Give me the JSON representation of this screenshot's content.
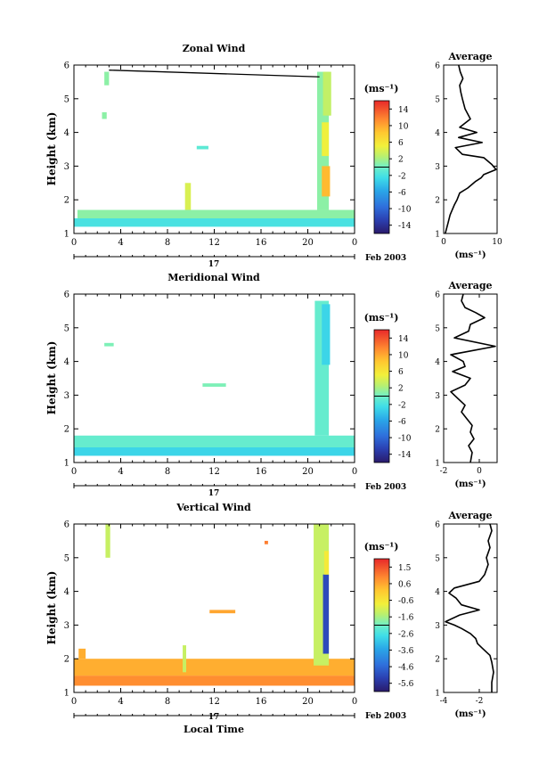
{
  "chart_data": [
    {
      "type": "heatmap",
      "title": "Zonal Wind",
      "xlabel": "",
      "ylabel": "Height (km)",
      "xlim": [
        0,
        24
      ],
      "ylim": [
        1,
        6
      ],
      "x_ticks": [
        "0",
        "4",
        "8",
        "12",
        "16",
        "20",
        "0"
      ],
      "y_ticks": [
        "1",
        "2",
        "3",
        "4",
        "5",
        "6"
      ],
      "day_label": "17",
      "date_label": "Feb 2003",
      "colorbar": {
        "unit_label": "(ms⁻¹)",
        "ticks": [
          "14",
          "10",
          "6",
          "2",
          "-2",
          "-6",
          "-10",
          "-14"
        ],
        "range": [
          -16,
          16
        ]
      },
      "value_range": [
        -16,
        16
      ],
      "regions": [
        {
          "t": [
            0,
            24
          ],
          "h": [
            1.2,
            1.45
          ],
          "v": -2
        },
        {
          "t": [
            0.3,
            24
          ],
          "h": [
            1.45,
            1.7
          ],
          "v": 1
        },
        {
          "t": [
            9.5,
            10
          ],
          "h": [
            1.7,
            2.5
          ],
          "v": 4
        },
        {
          "t": [
            2.6,
            3
          ],
          "h": [
            5.4,
            5.8
          ],
          "v": 1
        },
        {
          "t": [
            2.4,
            2.8
          ],
          "h": [
            4.4,
            4.6
          ],
          "v": 1
        },
        {
          "t": [
            10.5,
            11.5
          ],
          "h": [
            3.5,
            3.6
          ],
          "v": -1
        },
        {
          "t": [
            20.8,
            21.8
          ],
          "h": [
            1.7,
            5.8
          ],
          "v": 1
        },
        {
          "t": [
            21.2,
            21.9
          ],
          "h": [
            2.1,
            3
          ],
          "v": 9
        },
        {
          "t": [
            21.2,
            21.8
          ],
          "h": [
            3.3,
            4.3
          ],
          "v": 5
        },
        {
          "t": [
            21.3,
            22
          ],
          "h": [
            4.5,
            5.8
          ],
          "v": 3
        }
      ],
      "lines": [
        {
          "x": [
            3,
            21
          ],
          "y": [
            5.85,
            5.65
          ]
        }
      ],
      "average": {
        "title": "Average",
        "xlabel": "(ms⁻¹)",
        "xlim": [
          0,
          10
        ],
        "x_ticks": [
          "0",
          "10"
        ],
        "ylim": [
          1,
          6
        ],
        "profile_x": [
          0.3,
          0.8,
          1.2,
          2.0,
          2.5,
          3.0,
          4.5,
          6.0,
          7.0,
          7.5,
          9.8,
          9.0,
          7.5,
          3.5,
          2.2,
          7.2,
          2.8,
          6.2,
          3.0,
          5.0,
          4.0,
          3.5,
          3.2,
          3.0,
          3.6,
          3.1,
          2.8
        ],
        "profile_y": [
          1.0,
          1.3,
          1.55,
          1.85,
          2.0,
          2.2,
          2.35,
          2.55,
          2.65,
          2.75,
          2.9,
          3.05,
          3.25,
          3.35,
          3.55,
          3.7,
          3.85,
          4.0,
          4.15,
          4.4,
          4.7,
          5.0,
          5.2,
          5.4,
          5.6,
          5.8,
          6.0
        ]
      }
    },
    {
      "type": "heatmap",
      "title": "Meridional Wind",
      "xlabel": "",
      "ylabel": "Height (km)",
      "xlim": [
        0,
        24
      ],
      "ylim": [
        1,
        6
      ],
      "x_ticks": [
        "0",
        "4",
        "8",
        "12",
        "16",
        "20",
        "0"
      ],
      "y_ticks": [
        "1",
        "2",
        "3",
        "4",
        "5",
        "6"
      ],
      "day_label": "17",
      "date_label": "Feb 2003",
      "colorbar": {
        "unit_label": "(ms⁻¹)",
        "ticks": [
          "14",
          "10",
          "6",
          "2",
          "-2",
          "-6",
          "-10",
          "-14"
        ],
        "range": [
          -16,
          16
        ]
      },
      "value_range": [
        -16,
        16
      ],
      "regions": [
        {
          "t": [
            0,
            24
          ],
          "h": [
            1.2,
            1.45
          ],
          "v": -3
        },
        {
          "t": [
            0,
            24
          ],
          "h": [
            1.45,
            1.8
          ],
          "v": -0.5
        },
        {
          "t": [
            2.6,
            3.4
          ],
          "h": [
            4.45,
            4.55
          ],
          "v": 0.5
        },
        {
          "t": [
            11,
            13
          ],
          "h": [
            3.25,
            3.35
          ],
          "v": 0.5
        },
        {
          "t": [
            20.6,
            21.8
          ],
          "h": [
            1.8,
            5.8
          ],
          "v": -0.5
        },
        {
          "t": [
            21.2,
            21.9
          ],
          "h": [
            3.9,
            5.7
          ],
          "v": -3
        }
      ],
      "lines": [],
      "average": {
        "title": "Average",
        "xlabel": "(ms⁻¹)",
        "xlim": [
          -2,
          1
        ],
        "x_ticks": [
          "-2",
          "0"
        ],
        "ylim": [
          1,
          6
        ],
        "profile_x": [
          -0.5,
          -0.4,
          -0.6,
          -0.3,
          -0.5,
          -0.4,
          -0.7,
          -1.0,
          -0.8,
          -1.2,
          -1.6,
          -0.8,
          -0.5,
          -1.5,
          -0.8,
          -0.9,
          -1.6,
          0.9,
          -1.4,
          -0.6,
          -0.5,
          0.3,
          -0.2,
          -0.8,
          -1.0,
          -0.9
        ],
        "profile_y": [
          1.0,
          1.3,
          1.5,
          1.7,
          1.9,
          2.1,
          2.3,
          2.5,
          2.7,
          2.9,
          3.1,
          3.3,
          3.5,
          3.7,
          3.85,
          4.0,
          4.2,
          4.45,
          4.7,
          4.9,
          5.1,
          5.3,
          5.45,
          5.6,
          5.8,
          6.0
        ]
      }
    },
    {
      "type": "heatmap",
      "title": "Vertical Wind",
      "xlabel": "Local Time",
      "ylabel": "Height (km)",
      "xlim": [
        0,
        24
      ],
      "ylim": [
        1,
        6
      ],
      "x_ticks": [
        "0",
        "4",
        "8",
        "12",
        "16",
        "20",
        "0"
      ],
      "y_ticks": [
        "1",
        "2",
        "3",
        "4",
        "5",
        "6"
      ],
      "day_label": "17",
      "date_label": "Feb 2003",
      "colorbar": {
        "unit_label": "(ms⁻¹)",
        "ticks": [
          "1.5",
          "0.6",
          "-0.6",
          "-1.6",
          "-2.6",
          "-3.6",
          "-4.6",
          "-5.6"
        ],
        "range": [
          -6,
          2
        ]
      },
      "value_range": [
        -6,
        2
      ],
      "regions": [
        {
          "t": [
            0,
            24
          ],
          "h": [
            1.2,
            1.5
          ],
          "v": 0.8
        },
        {
          "t": [
            0,
            24
          ],
          "h": [
            1.5,
            2.0
          ],
          "v": 0.4
        },
        {
          "t": [
            0.4,
            1
          ],
          "h": [
            2.0,
            2.3
          ],
          "v": 0.4
        },
        {
          "t": [
            2.7,
            3.1
          ],
          "h": [
            5.0,
            6.0
          ],
          "v": -1.2
        },
        {
          "t": [
            9.3,
            9.6
          ],
          "h": [
            1.6,
            2.4
          ],
          "v": -1.2
        },
        {
          "t": [
            11.6,
            13.8
          ],
          "h": [
            3.35,
            3.45
          ],
          "v": 0.5
        },
        {
          "t": [
            16.3,
            16.6
          ],
          "h": [
            5.4,
            5.5
          ],
          "v": 1.0
        },
        {
          "t": [
            20.5,
            21.8
          ],
          "h": [
            1.8,
            6.0
          ],
          "v": -1.2
        },
        {
          "t": [
            21.3,
            21.8
          ],
          "h": [
            2.15,
            4.5
          ],
          "v": -5.0
        },
        {
          "t": [
            21.4,
            21.8
          ],
          "h": [
            4.5,
            5.2
          ],
          "v": -0.6
        }
      ],
      "lines": [],
      "average": {
        "title": "Average",
        "xlabel": "(ms⁻¹)",
        "xlim": [
          -4,
          -1
        ],
        "x_ticks": [
          "-4",
          "-2"
        ],
        "ylim": [
          1,
          6
        ],
        "profile_x": [
          -1.3,
          -1.3,
          -1.2,
          -1.3,
          -1.4,
          -1.8,
          -2.1,
          -2.2,
          -2.5,
          -3.0,
          -3.4,
          -3.9,
          -3.1,
          -2.0,
          -3.0,
          -3.3,
          -3.7,
          -3.4,
          -2.0,
          -1.7,
          -1.5,
          -1.6,
          -1.4,
          -1.5,
          -1.3,
          -1.4
        ],
        "profile_y": [
          1.0,
          1.3,
          1.6,
          1.9,
          2.1,
          2.3,
          2.45,
          2.6,
          2.75,
          2.9,
          3.0,
          3.1,
          3.3,
          3.45,
          3.6,
          3.8,
          3.95,
          4.1,
          4.3,
          4.5,
          4.8,
          5.0,
          5.3,
          5.5,
          5.8,
          6.0
        ]
      }
    }
  ]
}
